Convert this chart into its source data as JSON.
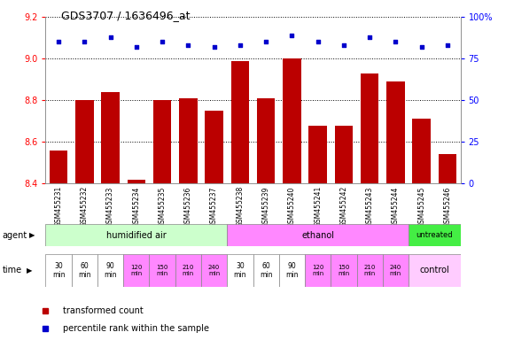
{
  "title": "GDS3707 / 1636496_at",
  "samples": [
    "GSM455231",
    "GSM455232",
    "GSM455233",
    "GSM455234",
    "GSM455235",
    "GSM455236",
    "GSM455237",
    "GSM455238",
    "GSM455239",
    "GSM455240",
    "GSM455241",
    "GSM455242",
    "GSM455243",
    "GSM455244",
    "GSM455245",
    "GSM455246"
  ],
  "bar_values": [
    8.56,
    8.8,
    8.84,
    8.42,
    8.8,
    8.81,
    8.75,
    8.99,
    8.81,
    9.0,
    8.68,
    8.68,
    8.93,
    8.89,
    8.71,
    8.54
  ],
  "dot_pct": [
    85,
    85,
    88,
    82,
    85,
    83,
    82,
    83,
    85,
    89,
    85,
    83,
    88,
    85,
    82,
    83
  ],
  "ylim_min": 8.4,
  "ylim_max": 9.2,
  "yticks": [
    8.4,
    8.6,
    8.8,
    9.0,
    9.2
  ],
  "y2lim_min": 0,
  "y2lim_max": 100,
  "y2ticks": [
    0,
    25,
    50,
    75,
    100
  ],
  "bar_color": "#bb0000",
  "dot_color": "#0000cc",
  "bg_color": "#ffffff",
  "spine_color": "#888888",
  "agent_groups": [
    {
      "label": "humidified air",
      "start": 0,
      "end": 7,
      "color": "#ccffcc"
    },
    {
      "label": "ethanol",
      "start": 7,
      "end": 14,
      "color": "#ff88ff"
    },
    {
      "label": "untreated",
      "start": 14,
      "end": 16,
      "color": "#44ee44"
    }
  ],
  "time_labels_14": [
    "30\nmin",
    "60\nmin",
    "90\nmin",
    "120\nmin",
    "150\nmin",
    "210\nmin",
    "240\nmin",
    "30\nmin",
    "60\nmin",
    "90\nmin",
    "120\nmin",
    "150\nmin",
    "210\nmin",
    "240\nmin"
  ],
  "time_colors_14": [
    "#ffffff",
    "#ffffff",
    "#ffffff",
    "#ff88ff",
    "#ff88ff",
    "#ff88ff",
    "#ff88ff",
    "#ffffff",
    "#ffffff",
    "#ffffff",
    "#ff88ff",
    "#ff88ff",
    "#ff88ff",
    "#ff88ff"
  ],
  "time_control_color": "#ffccff",
  "xlabel_agent": "agent",
  "xlabel_time": "time",
  "legend_items": [
    {
      "color": "#bb0000",
      "label": "transformed count"
    },
    {
      "color": "#0000cc",
      "label": "percentile rank within the sample"
    }
  ]
}
